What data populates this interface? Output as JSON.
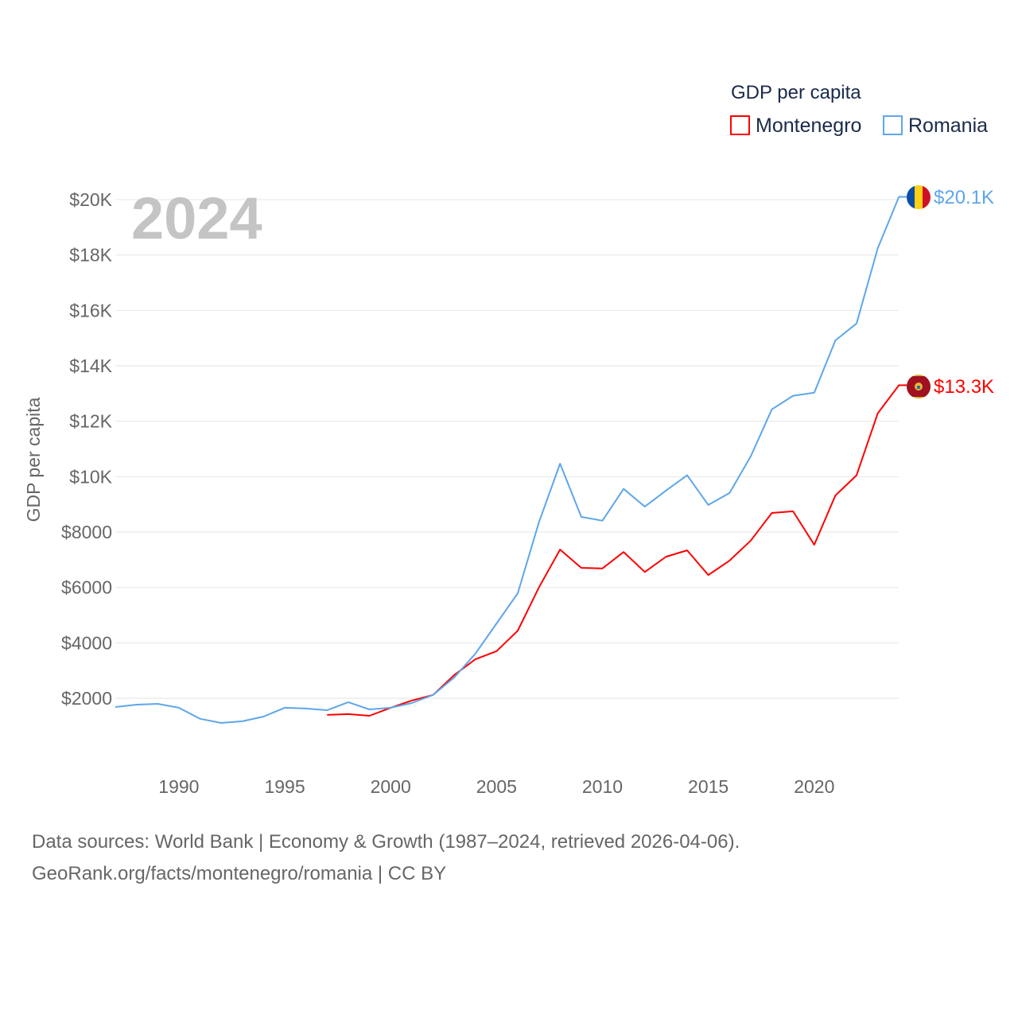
{
  "chart_data": {
    "type": "line",
    "title": "GDP per capita",
    "ylabel": "GDP per capita",
    "xlabel": "",
    "year_label": "2024",
    "xlim": [
      1987,
      2024
    ],
    "ylim": [
      0,
      20500
    ],
    "grid": true,
    "legend_placement": "top-right",
    "x_ticks": [
      1990,
      1995,
      2000,
      2005,
      2010,
      2015,
      2020
    ],
    "x_tick_labels": [
      "1990",
      "1995",
      "2000",
      "2005",
      "2010",
      "2015",
      "2020"
    ],
    "y_ticks": [
      2000,
      4000,
      6000,
      8000,
      10000,
      12000,
      14000,
      16000,
      18000,
      20000
    ],
    "y_tick_labels": [
      "$2000",
      "$4000",
      "$6000",
      "$8000",
      "$10K",
      "$12K",
      "$14K",
      "$16K",
      "$18K",
      "$20K"
    ],
    "series": [
      {
        "name": "Montenegro",
        "color": "#ff0000",
        "end_label": "$13.3K",
        "flag": "montenegro-flag",
        "x": [
          1997,
          1998,
          1999,
          2000,
          2001,
          2002,
          2003,
          2004,
          2005,
          2006,
          2007,
          2008,
          2009,
          2010,
          2011,
          2012,
          2013,
          2014,
          2015,
          2016,
          2017,
          2018,
          2019,
          2020,
          2021,
          2022,
          2023,
          2024
        ],
        "values": [
          1400,
          1430,
          1370,
          1660,
          1920,
          2120,
          2840,
          3410,
          3700,
          4440,
          6000,
          7370,
          6710,
          6690,
          7280,
          6560,
          7110,
          7340,
          6450,
          6970,
          7690,
          8690,
          8750,
          7540,
          9320,
          10050,
          12290,
          13300
        ]
      },
      {
        "name": "Romania",
        "color": "#5ea6ea",
        "end_label": "$20.1K",
        "flag": "romania-flag",
        "x": [
          1987,
          1988,
          1989,
          1990,
          1991,
          1992,
          1993,
          1994,
          1995,
          1996,
          1997,
          1998,
          1999,
          2000,
          2001,
          2002,
          2003,
          2004,
          2005,
          2006,
          2007,
          2008,
          2009,
          2010,
          2011,
          2012,
          2013,
          2014,
          2015,
          2016,
          2017,
          2018,
          2019,
          2020,
          2021,
          2022,
          2023,
          2024
        ],
        "values": [
          1685,
          1770,
          1800,
          1660,
          1260,
          1110,
          1170,
          1340,
          1660,
          1630,
          1570,
          1860,
          1600,
          1660,
          1830,
          2120,
          2750,
          3610,
          4700,
          5790,
          8350,
          10470,
          8550,
          8410,
          9560,
          8920,
          9500,
          10050,
          8980,
          9410,
          10730,
          12430,
          12920,
          13030,
          14920,
          15530,
          18250,
          20100
        ]
      }
    ]
  },
  "footer": {
    "line1": "Data sources: World Bank | Economy & Growth (1987–2024, retrieved 2026-04-06).",
    "line2": "GeoRank.org/facts/montenegro/romania | CC BY"
  }
}
